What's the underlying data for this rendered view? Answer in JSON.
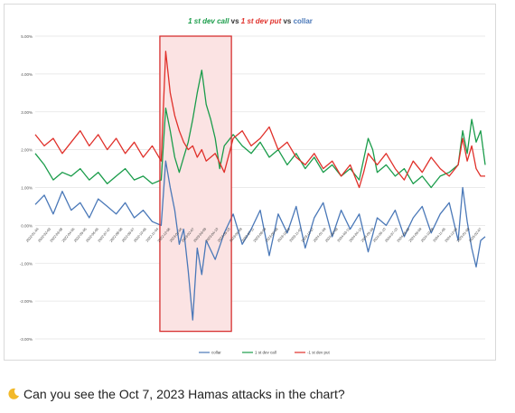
{
  "chart_data": {
    "type": "line",
    "title_parts": [
      {
        "text": "1 st dev call",
        "color": "#1a9c4a",
        "italic": true
      },
      {
        "text": " vs ",
        "color": "#333333",
        "italic": false
      },
      {
        "text": "1 st dev put",
        "color": "#e0302a",
        "italic": true
      },
      {
        "text": " vs ",
        "color": "#333333",
        "italic": false
      },
      {
        "text": "collar",
        "color": "#4a78b8",
        "italic": false
      }
    ],
    "y_ticks": [
      {
        "value": 5.0,
        "label": "5.00%"
      },
      {
        "value": 4.0,
        "label": "4.00%"
      },
      {
        "value": 3.0,
        "label": "3.00%"
      },
      {
        "value": 2.0,
        "label": "2.00%"
      },
      {
        "value": 1.0,
        "label": "1.00%"
      },
      {
        "value": 0.0,
        "label": "0.00%"
      },
      {
        "value": -1.0,
        "label": "-1.00%"
      },
      {
        "value": -2.0,
        "label": "-2.00%"
      },
      {
        "value": -3.0,
        "label": "-3.00%"
      }
    ],
    "ylim": [
      -3.0,
      5.0
    ],
    "x_ticks": [
      "2022-01-04",
      "2022-02-03",
      "2022-03-08",
      "2022-04-05",
      "2022-05-05",
      "2022-06-06",
      "2022-07-07",
      "2022-08-08",
      "2022-09-07",
      "2022-10-06",
      "2022-11-04",
      "2022-12-06",
      "2023-01-06",
      "2023-02-07",
      "2023-03-09",
      "2023-04-10",
      "2023-05-10",
      "2023-06-09",
      "2023-07-11",
      "2023-08-09",
      "2023-09-08",
      "2023-10-09",
      "2023-11-07",
      "2023-12-07",
      "2024-01-09",
      "2024-02-08",
      "2024-03-11",
      "2024-04-10",
      "2024-05-09",
      "2024-06-10",
      "2024-07-10",
      "2024-08-08",
      "2024-09-09",
      "2024-10-08",
      "2024-11-06",
      "2024-12-06",
      "2025-01-08",
      "2025-02-07"
    ],
    "grid": "horizontal",
    "legend_position": "bottom",
    "highlight": {
      "x_start": 0.277,
      "x_end": 0.436,
      "y_top": 5.0,
      "y_bottom": -2.8,
      "fill": "#fbe3e3",
      "stroke": "#d63030"
    },
    "series": [
      {
        "name": "collar",
        "color": "#4a78b8",
        "points": [
          [
            0.0,
            0.55
          ],
          [
            0.02,
            0.8
          ],
          [
            0.04,
            0.3
          ],
          [
            0.06,
            0.9
          ],
          [
            0.08,
            0.4
          ],
          [
            0.1,
            0.6
          ],
          [
            0.12,
            0.2
          ],
          [
            0.14,
            0.7
          ],
          [
            0.16,
            0.5
          ],
          [
            0.18,
            0.3
          ],
          [
            0.2,
            0.6
          ],
          [
            0.22,
            0.2
          ],
          [
            0.24,
            0.4
          ],
          [
            0.26,
            0.1
          ],
          [
            0.28,
            0.0
          ],
          [
            0.29,
            1.7
          ],
          [
            0.3,
            1.0
          ],
          [
            0.31,
            0.4
          ],
          [
            0.32,
            -0.5
          ],
          [
            0.33,
            -0.1
          ],
          [
            0.34,
            -1.2
          ],
          [
            0.35,
            -2.5
          ],
          [
            0.36,
            -0.6
          ],
          [
            0.37,
            -1.3
          ],
          [
            0.38,
            -0.4
          ],
          [
            0.4,
            -0.9
          ],
          [
            0.42,
            -0.2
          ],
          [
            0.44,
            0.3
          ],
          [
            0.46,
            -0.5
          ],
          [
            0.48,
            -0.1
          ],
          [
            0.5,
            0.4
          ],
          [
            0.52,
            -0.8
          ],
          [
            0.54,
            0.3
          ],
          [
            0.56,
            -0.2
          ],
          [
            0.58,
            0.5
          ],
          [
            0.6,
            -0.6
          ],
          [
            0.62,
            0.2
          ],
          [
            0.64,
            0.6
          ],
          [
            0.66,
            -0.3
          ],
          [
            0.68,
            0.4
          ],
          [
            0.7,
            -0.1
          ],
          [
            0.72,
            0.3
          ],
          [
            0.74,
            -0.7
          ],
          [
            0.76,
            0.2
          ],
          [
            0.78,
            0.0
          ],
          [
            0.8,
            0.4
          ],
          [
            0.82,
            -0.3
          ],
          [
            0.84,
            0.2
          ],
          [
            0.86,
            0.5
          ],
          [
            0.88,
            -0.2
          ],
          [
            0.9,
            0.3
          ],
          [
            0.92,
            0.6
          ],
          [
            0.94,
            -0.4
          ],
          [
            0.95,
            1.0
          ],
          [
            0.96,
            0.1
          ],
          [
            0.97,
            -0.6
          ],
          [
            0.98,
            -1.1
          ],
          [
            0.99,
            -0.4
          ],
          [
            1.0,
            -0.3
          ]
        ]
      },
      {
        "name": "1 st dev call",
        "color": "#1a9c4a",
        "points": [
          [
            0.0,
            1.9
          ],
          [
            0.02,
            1.6
          ],
          [
            0.04,
            1.2
          ],
          [
            0.06,
            1.4
          ],
          [
            0.08,
            1.3
          ],
          [
            0.1,
            1.5
          ],
          [
            0.12,
            1.2
          ],
          [
            0.14,
            1.4
          ],
          [
            0.16,
            1.1
          ],
          [
            0.18,
            1.3
          ],
          [
            0.2,
            1.5
          ],
          [
            0.22,
            1.2
          ],
          [
            0.24,
            1.3
          ],
          [
            0.26,
            1.1
          ],
          [
            0.28,
            1.2
          ],
          [
            0.29,
            3.1
          ],
          [
            0.3,
            2.5
          ],
          [
            0.31,
            1.8
          ],
          [
            0.32,
            1.4
          ],
          [
            0.33,
            1.8
          ],
          [
            0.34,
            2.2
          ],
          [
            0.35,
            2.8
          ],
          [
            0.36,
            3.5
          ],
          [
            0.37,
            4.1
          ],
          [
            0.38,
            3.2
          ],
          [
            0.39,
            2.8
          ],
          [
            0.4,
            2.3
          ],
          [
            0.41,
            1.5
          ],
          [
            0.42,
            2.1
          ],
          [
            0.44,
            2.4
          ],
          [
            0.46,
            2.1
          ],
          [
            0.48,
            1.9
          ],
          [
            0.5,
            2.2
          ],
          [
            0.52,
            1.8
          ],
          [
            0.54,
            2.0
          ],
          [
            0.56,
            1.6
          ],
          [
            0.58,
            1.9
          ],
          [
            0.6,
            1.5
          ],
          [
            0.62,
            1.8
          ],
          [
            0.64,
            1.4
          ],
          [
            0.66,
            1.6
          ],
          [
            0.68,
            1.3
          ],
          [
            0.7,
            1.5
          ],
          [
            0.72,
            1.2
          ],
          [
            0.74,
            2.3
          ],
          [
            0.75,
            2.0
          ],
          [
            0.76,
            1.4
          ],
          [
            0.78,
            1.6
          ],
          [
            0.8,
            1.3
          ],
          [
            0.82,
            1.5
          ],
          [
            0.84,
            1.1
          ],
          [
            0.86,
            1.3
          ],
          [
            0.88,
            1.0
          ],
          [
            0.9,
            1.3
          ],
          [
            0.92,
            1.4
          ],
          [
            0.94,
            1.6
          ],
          [
            0.95,
            2.5
          ],
          [
            0.96,
            1.9
          ],
          [
            0.97,
            2.8
          ],
          [
            0.98,
            2.2
          ],
          [
            0.99,
            2.5
          ],
          [
            1.0,
            1.6
          ]
        ]
      },
      {
        "name": "-1 st dev put",
        "color": "#e0302a",
        "points": [
          [
            0.0,
            2.4
          ],
          [
            0.02,
            2.1
          ],
          [
            0.04,
            2.3
          ],
          [
            0.06,
            1.9
          ],
          [
            0.08,
            2.2
          ],
          [
            0.1,
            2.5
          ],
          [
            0.12,
            2.1
          ],
          [
            0.14,
            2.4
          ],
          [
            0.16,
            2.0
          ],
          [
            0.18,
            2.3
          ],
          [
            0.2,
            1.9
          ],
          [
            0.22,
            2.2
          ],
          [
            0.24,
            1.8
          ],
          [
            0.26,
            2.1
          ],
          [
            0.28,
            1.7
          ],
          [
            0.29,
            4.6
          ],
          [
            0.3,
            3.5
          ],
          [
            0.31,
            2.9
          ],
          [
            0.32,
            2.5
          ],
          [
            0.33,
            2.2
          ],
          [
            0.34,
            2.0
          ],
          [
            0.35,
            2.1
          ],
          [
            0.36,
            1.8
          ],
          [
            0.37,
            2.0
          ],
          [
            0.38,
            1.7
          ],
          [
            0.4,
            1.9
          ],
          [
            0.42,
            1.4
          ],
          [
            0.44,
            2.3
          ],
          [
            0.46,
            2.5
          ],
          [
            0.48,
            2.1
          ],
          [
            0.5,
            2.3
          ],
          [
            0.52,
            2.6
          ],
          [
            0.54,
            2.0
          ],
          [
            0.56,
            2.2
          ],
          [
            0.58,
            1.8
          ],
          [
            0.6,
            1.6
          ],
          [
            0.62,
            1.9
          ],
          [
            0.64,
            1.5
          ],
          [
            0.66,
            1.7
          ],
          [
            0.68,
            1.3
          ],
          [
            0.7,
            1.6
          ],
          [
            0.72,
            1.0
          ],
          [
            0.73,
            1.4
          ],
          [
            0.74,
            1.9
          ],
          [
            0.76,
            1.6
          ],
          [
            0.78,
            1.9
          ],
          [
            0.8,
            1.5
          ],
          [
            0.82,
            1.2
          ],
          [
            0.84,
            1.7
          ],
          [
            0.86,
            1.4
          ],
          [
            0.88,
            1.8
          ],
          [
            0.9,
            1.5
          ],
          [
            0.92,
            1.3
          ],
          [
            0.94,
            1.6
          ],
          [
            0.95,
            2.3
          ],
          [
            0.96,
            1.7
          ],
          [
            0.97,
            2.1
          ],
          [
            0.98,
            1.5
          ],
          [
            0.99,
            1.3
          ],
          [
            1.0,
            1.3
          ]
        ]
      }
    ]
  },
  "caption": {
    "icon": "crescent-moon-icon",
    "text": "Can you see the Oct 7, 2023 Hamas attacks in the chart?"
  }
}
